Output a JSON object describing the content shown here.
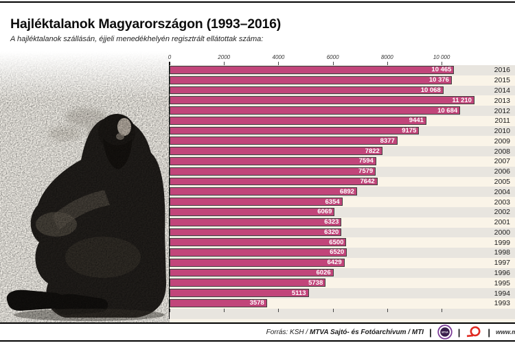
{
  "header": {
    "title": "Hajléktalanok Magyarországon (1993–2016)",
    "subtitle": "A hajléktalanok szállásán, éjjeli menedékhelyén regisztrált ellátottak száma:"
  },
  "chart_data": {
    "type": "bar",
    "orientation": "horizontal",
    "title": "Hajléktalanok Magyarországon (1993–2016)",
    "subtitle": "A hajléktalanok szállásán, éjjeli menedékhelyén regisztrált ellátottak száma:",
    "categories": [
      "2016",
      "2015",
      "2014",
      "2013",
      "2012",
      "2011",
      "2010",
      "2009",
      "2008",
      "2007",
      "2006",
      "2005",
      "2004",
      "2003",
      "2002",
      "2001",
      "2000",
      "1999",
      "1998",
      "1997",
      "1996",
      "1995",
      "1994",
      "1993"
    ],
    "values": [
      10465,
      10376,
      10068,
      11210,
      10684,
      9441,
      9175,
      8377,
      7822,
      7594,
      7579,
      7642,
      6892,
      6354,
      6069,
      6323,
      6320,
      6500,
      6520,
      6429,
      6026,
      5738,
      5113,
      3578
    ],
    "value_labels": [
      "10 465",
      "10 376",
      "10 068",
      "11 210",
      "10 684",
      "9441",
      "9175",
      "8377",
      "7822",
      "7594",
      "7579",
      "7642",
      "6892",
      "6354",
      "6069",
      "6323",
      "6320",
      "6500",
      "6520",
      "6429",
      "6026",
      "5738",
      "5113",
      "3578"
    ],
    "x_tick_labels": [
      "0",
      "2000",
      "4000",
      "6000",
      "8000",
      "10 000"
    ],
    "x_tick_values": [
      0,
      2000,
      4000,
      6000,
      8000,
      10000
    ],
    "xlim": [
      0,
      12700
    ],
    "grid": "dashed-vertical",
    "legend": "none",
    "value_label_position": "inside-end",
    "category_label_position": "right",
    "bar_color": "#c1457a",
    "bar_border_color": "#3d3d3d",
    "row_stripe_colors": [
      "#e8e5df",
      "#faf4e8"
    ]
  },
  "photo": {
    "description": "grainy black-and-white photo of a bearded homeless man sitting hunched on the ground, smoking"
  },
  "footer": {
    "source_regular": "Forrás: KSH / ",
    "source_bold": "MTVA Sajtó- és Fotóarchívum / MTI",
    "separator": "|",
    "mtva_logo_text": "MTVA",
    "url_fragment": "www.m"
  }
}
